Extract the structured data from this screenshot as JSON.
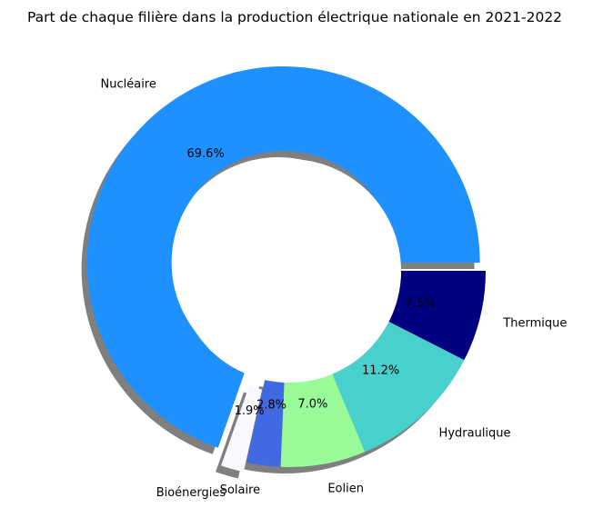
{
  "chart_data": {
    "type": "pie",
    "title": "Part de chaque filière dans la production électrique nationale en 2021-2022",
    "donut": true,
    "shadow": true,
    "slices": [
      {
        "label": "Nucléaire",
        "value": 69.6,
        "pct_label": "69.6%",
        "color": "#1E90FF",
        "explode": true
      },
      {
        "label": "Bioénergies",
        "value": 1.9,
        "pct_label": "1.9%",
        "color": "#F8F8FF",
        "explode": true
      },
      {
        "label": "Solaire",
        "value": 2.8,
        "pct_label": "2.8%",
        "color": "#4169E1",
        "explode": false
      },
      {
        "label": "Eolien",
        "value": 7.0,
        "pct_label": "7.0%",
        "color": "#98FB98",
        "explode": false
      },
      {
        "label": "Hydraulique",
        "value": 11.2,
        "pct_label": "11.2%",
        "color": "#48D1CC",
        "explode": false
      },
      {
        "label": "Thermique",
        "value": 7.5,
        "pct_label": "7.5%",
        "color": "#000080",
        "explode": false
      }
    ]
  }
}
